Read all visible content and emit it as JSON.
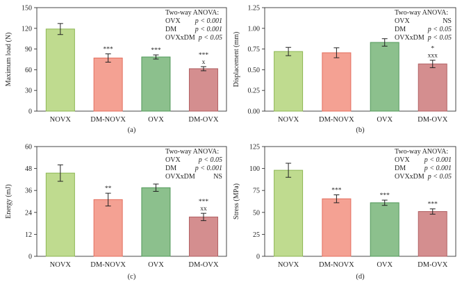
{
  "chart_data": [
    {
      "type": "bar",
      "panel_label": "(a)",
      "ylabel": "Maximum load (N)",
      "xlabel": "",
      "ylim": [
        0,
        150
      ],
      "yticks": [
        0,
        30,
        60,
        90,
        120,
        150
      ],
      "tick_labels": [
        "0",
        "30",
        "60",
        "90",
        "120",
        "150"
      ],
      "categories": [
        "NOVX",
        "DM-NOVX",
        "OVX",
        "DM-OVX"
      ],
      "values": [
        119,
        77,
        78.5,
        61.5
      ],
      "errors": [
        8,
        6,
        3,
        3
      ],
      "sig_marks": [
        "",
        "***",
        "***",
        "***\nx"
      ],
      "anova": {
        "title": "Two-way ANOVA:",
        "rows": [
          [
            "OVX",
            "p < 0.001"
          ],
          [
            "DM",
            "p < 0.001"
          ],
          [
            "OVXxDM",
            "p < 0.05"
          ]
        ]
      }
    },
    {
      "type": "bar",
      "panel_label": "(b)",
      "ylabel": "Displacement (mm)",
      "xlabel": "",
      "ylim": [
        0,
        1.25
      ],
      "yticks": [
        0,
        0.25,
        0.5,
        0.75,
        1.0,
        1.25
      ],
      "tick_labels": [
        "0.00",
        "0.25",
        "0.50",
        "0.75",
        "1.00",
        "1.25"
      ],
      "categories": [
        "NOVX",
        "DM-NOVX",
        "OVX",
        "DM-OVX"
      ],
      "values": [
        0.72,
        0.705,
        0.83,
        0.57
      ],
      "errors": [
        0.05,
        0.06,
        0.045,
        0.045
      ],
      "sig_marks": [
        "",
        "",
        "",
        "*\nxxx"
      ],
      "anova": {
        "title": "Two-way ANOVA:",
        "rows": [
          [
            "OVX",
            "NS"
          ],
          [
            "DM",
            "p < 0.05"
          ],
          [
            "OVXxDM",
            "p < 0.05"
          ]
        ]
      }
    },
    {
      "type": "bar",
      "panel_label": "(c)",
      "ylabel": "Energy (mJ)",
      "xlabel": "",
      "ylim": [
        0,
        60
      ],
      "yticks": [
        0,
        12,
        24,
        36,
        48,
        60
      ],
      "tick_labels": [
        "0",
        "12",
        "24",
        "36",
        "48",
        "60"
      ],
      "categories": [
        "NOVX",
        "DM-NOVX",
        "OVX",
        "DM-OVX"
      ],
      "values": [
        45.5,
        31,
        37.5,
        21.5
      ],
      "errors": [
        4.5,
        3.5,
        2,
        2
      ],
      "sig_marks": [
        "",
        "**",
        "",
        "***\nxx"
      ],
      "anova": {
        "title": "Two-way ANOVA:",
        "rows": [
          [
            "OVX",
            "p < 0.05"
          ],
          [
            "DM",
            "p < 0.001"
          ],
          [
            "OVXxDM",
            "NS"
          ]
        ]
      }
    },
    {
      "type": "bar",
      "panel_label": "(d)",
      "ylabel": "Stress (MPa)",
      "xlabel": "",
      "ylim": [
        0,
        125
      ],
      "yticks": [
        0,
        25,
        50,
        75,
        100,
        125
      ],
      "tick_labels": [
        "0",
        "25",
        "50",
        "75",
        "100",
        "125"
      ],
      "categories": [
        "NOVX",
        "DM-NOVX",
        "OVX",
        "DM-OVX"
      ],
      "values": [
        98,
        65.5,
        61,
        51
      ],
      "errors": [
        8,
        4.5,
        3,
        3
      ],
      "sig_marks": [
        "",
        "***",
        "***",
        "***"
      ],
      "anova": {
        "title": "Two-way ANOVA:",
        "rows": [
          [
            "OVX",
            "p < 0.001"
          ],
          [
            "DM",
            "p < 0.001"
          ],
          [
            "OVXxDM",
            "p < 0.05"
          ]
        ]
      }
    }
  ],
  "colors": {
    "bar_fills": [
      "#bfdb8f",
      "#f4a193",
      "#8cc08d",
      "#d48e8f"
    ],
    "bar_strokes": [
      "#8db653",
      "#e36f5f",
      "#52995a",
      "#b05f62"
    ],
    "axis": "#333333",
    "error_bar": "#222222"
  }
}
